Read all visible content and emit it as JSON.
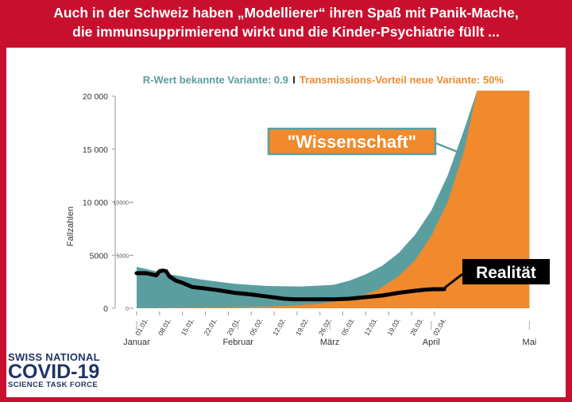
{
  "headline": {
    "line1": "Auch in der Schweiz haben „Modellierer“ ihren Spaß mit Panik-Mache,",
    "line2": "die immunsupprimierend wirkt und die Kinder-Psychiatrie füllt ..."
  },
  "chart_data": {
    "type": "area",
    "subtitle_left": "R-Wert bekannte Variante: 0.9",
    "subtitle_sep": "I",
    "subtitle_right": "Transmissions-Vorteil neue Variante: 50%",
    "ylabel": "Fallzahlen",
    "ylim": [
      0,
      20000
    ],
    "y_ticks": [
      {
        "value": 0,
        "label": "0"
      },
      {
        "value": 5000,
        "label": "5000"
      },
      {
        "value": 10000,
        "label": "10 000"
      },
      {
        "value": 15000,
        "label": "15 000"
      },
      {
        "value": 20000,
        "label": "20 000"
      }
    ],
    "inner_ticks": [
      {
        "value": 0,
        "label": "0"
      },
      {
        "value": 5000,
        "label": "5000"
      },
      {
        "value": 10000,
        "label": "10000"
      }
    ],
    "x_ticks": [
      "01.01.",
      "08.01.",
      "15.01.",
      "22.01.",
      "29.01.",
      "05.02.",
      "12.02.",
      "19.02.",
      "26.02.",
      "05.03.",
      "12.03.",
      "19.03.",
      "26.03.",
      "02.04."
    ],
    "months": [
      "Januar",
      "Februar",
      "März",
      "April",
      "Mai"
    ],
    "month_day": [
      0,
      31,
      59,
      90,
      120
    ],
    "series": [
      {
        "name": "",
        "color": "#5b9ea0",
        "x_day": [
          0,
          10,
          20,
          30,
          40,
          50,
          60,
          65,
          70,
          75,
          80,
          85,
          90,
          95,
          100,
          104,
          106,
          120
        ],
        "y": [
          3900,
          3200,
          2700,
          2300,
          2100,
          2050,
          2200,
          2600,
          3200,
          4000,
          5200,
          6900,
          9200,
          12500,
          16800,
          20500,
          20500,
          20500
        ]
      },
      {
        "name": "",
        "color": "#f08a2c",
        "x_day": [
          0,
          30,
          45,
          55,
          62,
          68,
          74,
          80,
          85,
          90,
          95,
          100,
          104,
          106,
          120
        ],
        "y": [
          0,
          100,
          200,
          400,
          700,
          1100,
          1800,
          3000,
          4500,
          6800,
          10000,
          14800,
          20500,
          20500,
          20500
        ]
      }
    ],
    "real": {
      "name": "",
      "color": "#000000",
      "x_day": [
        0,
        3,
        6,
        7,
        8,
        9,
        10,
        12,
        14,
        17,
        20,
        25,
        30,
        35,
        40,
        45,
        48,
        55,
        60,
        65,
        70,
        75,
        80,
        85,
        88,
        91,
        94
      ],
      "y": [
        3300,
        3300,
        3100,
        3500,
        3550,
        3500,
        3000,
        2600,
        2400,
        2000,
        1900,
        1700,
        1450,
        1300,
        1100,
        900,
        850,
        850,
        850,
        900,
        1050,
        1200,
        1450,
        1650,
        1750,
        1800,
        1800
      ]
    },
    "annotations": {
      "wissenschaft": "\"Wissenschaft\"",
      "realitaet": "Realität"
    }
  },
  "logo": {
    "line1": "SWISS NATIONAL",
    "line2": "COVID-19",
    "line3": "SCIENCE TASK FORCE"
  }
}
